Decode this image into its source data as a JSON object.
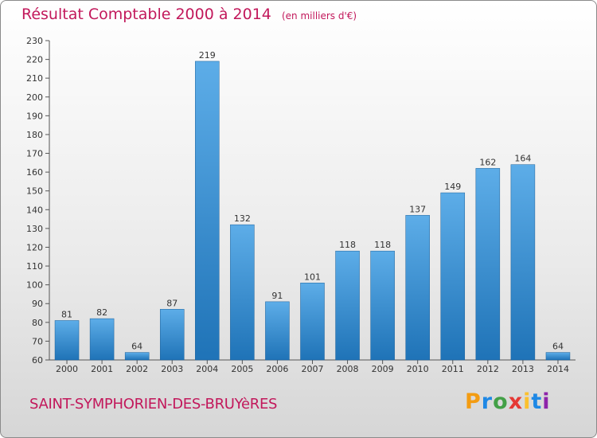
{
  "header": {
    "title": "Résultat Comptable 2000 à 2014",
    "subtitle": "(en milliers d'€)"
  },
  "footer": {
    "commune": "SAINT-SYMPHORIEN-DES-BRUYèRES",
    "logo_letters": [
      "P",
      "r",
      "o",
      "x",
      "i",
      "t",
      "i"
    ]
  },
  "colors": {
    "accent": "#c2185b",
    "bar_top": "#5dade8",
    "bar_bottom": "#1f73b7"
  },
  "chart_data": {
    "type": "bar",
    "title": "Résultat Comptable 2000 à 2014",
    "subtitle": "(en milliers d'€)",
    "xlabel": "",
    "ylabel": "",
    "categories": [
      "2000",
      "2001",
      "2002",
      "2003",
      "2004",
      "2005",
      "2006",
      "2007",
      "2008",
      "2009",
      "2010",
      "2011",
      "2012",
      "2013",
      "2014"
    ],
    "values": [
      81,
      82,
      64,
      87,
      219,
      132,
      91,
      101,
      118,
      118,
      137,
      149,
      162,
      164,
      64
    ],
    "ylim": [
      60,
      230
    ],
    "yticks": [
      60,
      70,
      80,
      90,
      100,
      110,
      120,
      130,
      140,
      150,
      160,
      170,
      180,
      190,
      200,
      210,
      220,
      230
    ],
    "grid": false,
    "legend": "none"
  }
}
